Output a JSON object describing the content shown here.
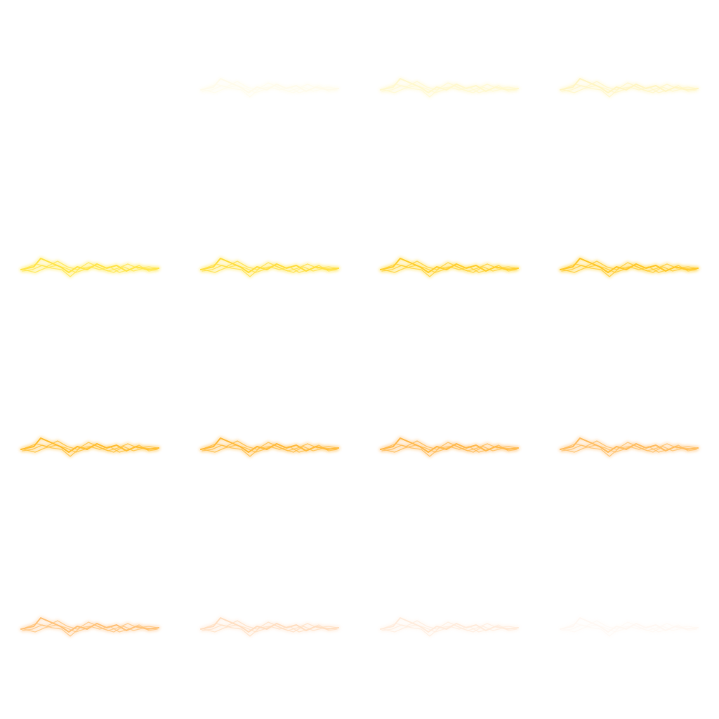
{
  "sprite_sheet": {
    "grid": {
      "rows": 4,
      "columns": 4
    },
    "frames": [
      {
        "frame": 1,
        "color": "#ffffff",
        "glow": "#ffffff",
        "opacity": 0.0
      },
      {
        "frame": 2,
        "color": "#fff6c8",
        "glow": "#fffbe2",
        "opacity": 0.35
      },
      {
        "frame": 3,
        "color": "#fff3a8",
        "glow": "#fff8d0",
        "opacity": 0.55
      },
      {
        "frame": 4,
        "color": "#fff0a0",
        "glow": "#fff8d0",
        "opacity": 0.6
      },
      {
        "frame": 5,
        "color": "#ffe23a",
        "glow": "#fff3a0",
        "opacity": 0.9
      },
      {
        "frame": 6,
        "color": "#ffdb30",
        "glow": "#fff1a0",
        "opacity": 0.9
      },
      {
        "frame": 7,
        "color": "#ffcc22",
        "glow": "#ffeb95",
        "opacity": 0.92
      },
      {
        "frame": 8,
        "color": "#ffc41c",
        "glow": "#ffe690",
        "opacity": 0.92
      },
      {
        "frame": 9,
        "color": "#ffb81e",
        "glow": "#ffe0a0",
        "opacity": 0.9
      },
      {
        "frame": 10,
        "color": "#ffb224",
        "glow": "#ffdca0",
        "opacity": 0.88
      },
      {
        "frame": 11,
        "color": "#ffae30",
        "glow": "#ffd9a8",
        "opacity": 0.85
      },
      {
        "frame": 12,
        "color": "#ffb040",
        "glow": "#ffdcb0",
        "opacity": 0.82
      },
      {
        "frame": 13,
        "color": "#ffb050",
        "glow": "#ffe0c0",
        "opacity": 0.75
      },
      {
        "frame": 14,
        "color": "#ffc088",
        "glow": "#ffe8d5",
        "opacity": 0.5
      },
      {
        "frame": 15,
        "color": "#ffcfa8",
        "glow": "#fff0e2",
        "opacity": 0.38
      },
      {
        "frame": 16,
        "color": "#ffe2cc",
        "glow": "#fff6ee",
        "opacity": 0.22
      }
    ]
  }
}
